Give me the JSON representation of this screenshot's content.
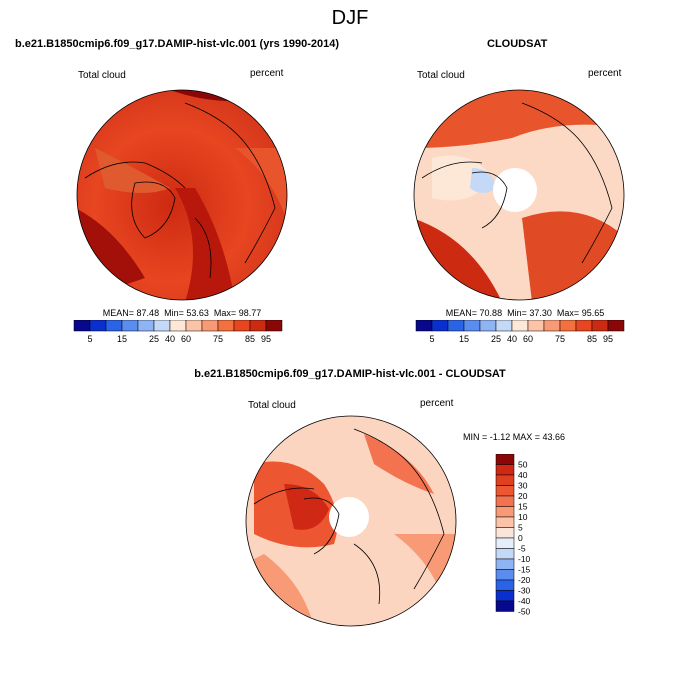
{
  "figure": {
    "title": "DJF"
  },
  "colors": {
    "abs_scale": [
      "#08088c",
      "#0a2fd0",
      "#2a63e6",
      "#5b8cef",
      "#8fb4f4",
      "#c4d9f7",
      "#fde8d8",
      "#fbc4a8",
      "#f89a76",
      "#f3703f",
      "#e84621",
      "#cd2a12",
      "#8b0707"
    ],
    "diff_scale": [
      "#08088c",
      "#0a2fd0",
      "#2a63e6",
      "#5b8cef",
      "#8fb4f4",
      "#c4d9f7",
      "#e6eefa",
      "#fbe4d8",
      "#fbc4a8",
      "#f89a76",
      "#f37350",
      "#ec5630",
      "#e0401f",
      "#cf2814",
      "#8b0707"
    ],
    "land": "#000000",
    "background": "#ffffff"
  },
  "chart_data": [
    {
      "type": "heatmap",
      "projection": "north-polar-stereographic",
      "title": "b.e21.B1850cmip6.f09_g17.DAMIP-hist-vlc.001 (yrs 1990-2014)",
      "left_label": "Total cloud",
      "right_label": "percent",
      "stats": {
        "mean_label": "MEAN=",
        "mean": "87.48",
        "min_label": "Min=",
        "min": "53.63",
        "max_label": "Max=",
        "max": "98.77"
      },
      "colorbar": {
        "ticks": [
          "5",
          "15",
          "25",
          "40",
          "60",
          "75",
          "85",
          "95"
        ]
      }
    },
    {
      "type": "heatmap",
      "projection": "north-polar-stereographic",
      "title": "CLOUDSAT",
      "left_label": "Total cloud",
      "right_label": "percent",
      "stats": {
        "mean_label": "MEAN=",
        "mean": "70.88",
        "min_label": "Min=",
        "min": "37.30",
        "max_label": "Max=",
        "max": "95.65"
      },
      "colorbar": {
        "ticks": [
          "5",
          "15",
          "25",
          "40",
          "60",
          "75",
          "85",
          "95"
        ]
      }
    },
    {
      "type": "heatmap",
      "projection": "north-polar-stereographic",
      "title": "b.e21.B1850cmip6.f09_g17.DAMIP-hist-vlc.001 - CLOUDSAT",
      "left_label": "Total cloud",
      "right_label": "percent",
      "stats_text": "MIN = -1.12 MAX = 43.66",
      "colorbar": {
        "ticks": [
          "50",
          "40",
          "30",
          "20",
          "15",
          "10",
          "5",
          "0",
          "-5",
          "-10",
          "-15",
          "-20",
          "-30",
          "-40",
          "-50"
        ]
      }
    }
  ]
}
